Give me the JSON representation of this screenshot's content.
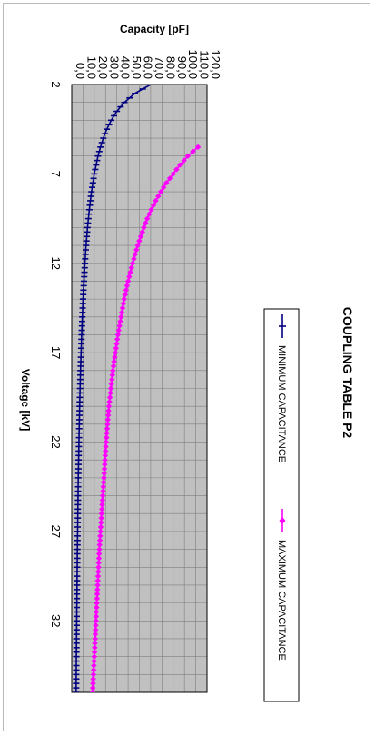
{
  "colors": {
    "plot_bg": "#c0c0c0",
    "grid": "#7f7f7f",
    "min_series": "#000080",
    "max_series": "#ff00ff",
    "frame": "#b9b9b9"
  },
  "chart_data": {
    "type": "line",
    "orientation": "rotated 90 degrees clockwise",
    "title": "COUPLING TABLE P2",
    "xlabel": "Voltage [kV]",
    "ylabel": "Capacity [pF]",
    "xlim": [
      2,
      36
    ],
    "ylim": [
      0,
      120
    ],
    "x_tick_labels": [
      "2",
      "7",
      "12",
      "17",
      "22",
      "27",
      "32"
    ],
    "y_tick_labels": [
      "0,0",
      "10,0",
      "20,0",
      "30,0",
      "40,0",
      "50,0",
      "60,0",
      "70,0",
      "80,0",
      "90,0",
      "100,0",
      "110,0",
      "120,0"
    ],
    "grid": true,
    "legend_position": "right",
    "series": [
      {
        "name": "MINIMUM CAPACITANCE",
        "color": "#000080",
        "marker": "dash",
        "x": [
          2.0,
          2.5,
          3.0,
          3.5,
          4.0,
          4.5,
          5.0,
          5.5,
          6.0,
          7.0,
          8.0,
          9.0,
          10.0,
          11.0,
          12.0,
          14.0,
          16.0,
          18.0,
          20.0,
          22.0,
          24.0,
          26.0,
          28.0,
          30.0,
          32.0,
          34.0,
          36.0
        ],
        "values": [
          70.0,
          56.0,
          46.7,
          40.0,
          35.0,
          31.1,
          28.0,
          25.5,
          23.3,
          20.0,
          17.5,
          15.6,
          14.0,
          12.7,
          11.7,
          10.0,
          8.8,
          7.8,
          7.0,
          6.4,
          5.8,
          5.4,
          5.0,
          4.7,
          4.4,
          4.1,
          3.9
        ]
      },
      {
        "name": "MAXIMUM CAPACITANCE",
        "color": "#ff00ff",
        "marker": "diamond",
        "x": [
          5.5,
          6.0,
          6.5,
          7.0,
          7.5,
          8.0,
          8.5,
          9.0,
          9.5,
          10.0,
          11.0,
          12.0,
          13.0,
          14.0,
          16.0,
          18.0,
          20.0,
          22.0,
          24.0,
          26.0,
          28.0,
          30.0,
          32.0,
          34.0,
          36.0
        ],
        "values": [
          112.0,
          103.0,
          96.0,
          90.0,
          84.0,
          79.0,
          74.5,
          70.5,
          67.0,
          64.0,
          58.5,
          54.0,
          50.0,
          46.5,
          41.0,
          36.5,
          33.0,
          30.5,
          28.5,
          26.5,
          24.5,
          23.0,
          21.5,
          20.0,
          18.5
        ]
      }
    ]
  }
}
